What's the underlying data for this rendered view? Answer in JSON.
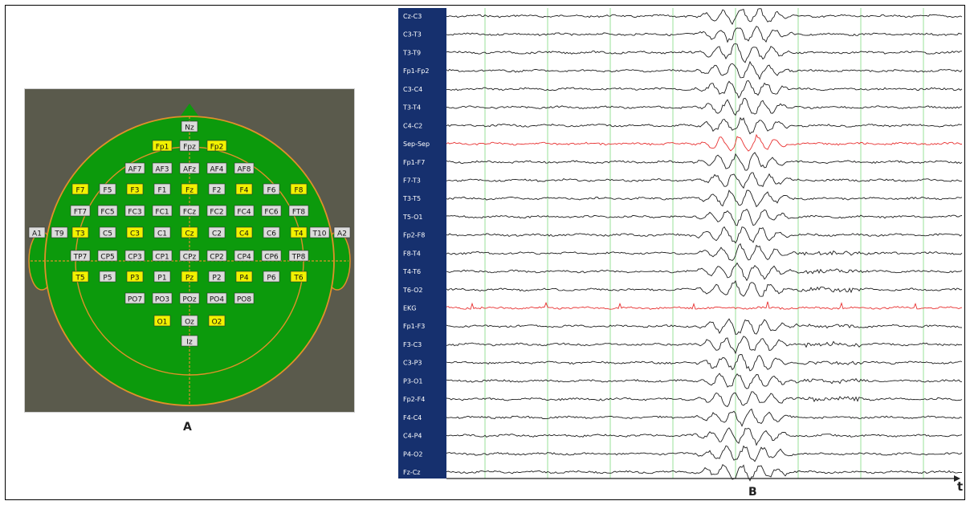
{
  "montage": {
    "caption": "A",
    "colors": {
      "background": "#5a5a4c",
      "head": "#0c9a0c",
      "outline": "#e0902a",
      "active_label": "#f2f200",
      "label": "#dcdcdc"
    },
    "electrodes": [
      {
        "label": "Nz",
        "active": false,
        "row": 0,
        "col": 0
      },
      {
        "label": "Fpz",
        "active": false,
        "row": 1,
        "col": 0
      },
      {
        "label": "Fp1",
        "active": true,
        "row": 1,
        "col": -1
      },
      {
        "label": "Fp2",
        "active": true,
        "row": 1,
        "col": 1
      },
      {
        "label": "AF7",
        "active": false,
        "row": 2,
        "col": -2
      },
      {
        "label": "AF3",
        "active": false,
        "row": 2,
        "col": -1
      },
      {
        "label": "AFz",
        "active": false,
        "row": 2,
        "col": 0
      },
      {
        "label": "AF4",
        "active": false,
        "row": 2,
        "col": 1
      },
      {
        "label": "AF8",
        "active": false,
        "row": 2,
        "col": 2
      },
      {
        "label": "F7",
        "active": true,
        "row": 3,
        "col": -4
      },
      {
        "label": "F5",
        "active": false,
        "row": 3,
        "col": -3
      },
      {
        "label": "F3",
        "active": true,
        "row": 3,
        "col": -2
      },
      {
        "label": "F1",
        "active": false,
        "row": 3,
        "col": -1
      },
      {
        "label": "Fz",
        "active": true,
        "row": 3,
        "col": 0
      },
      {
        "label": "F2",
        "active": false,
        "row": 3,
        "col": 1
      },
      {
        "label": "F4",
        "active": true,
        "row": 3,
        "col": 2
      },
      {
        "label": "F6",
        "active": false,
        "row": 3,
        "col": 3
      },
      {
        "label": "F8",
        "active": true,
        "row": 3,
        "col": 4
      },
      {
        "label": "FT7",
        "active": false,
        "row": 4,
        "col": -4
      },
      {
        "label": "FC5",
        "active": false,
        "row": 4,
        "col": -3
      },
      {
        "label": "FC3",
        "active": false,
        "row": 4,
        "col": -2
      },
      {
        "label": "FC1",
        "active": false,
        "row": 4,
        "col": -1
      },
      {
        "label": "FCz",
        "active": false,
        "row": 4,
        "col": 0
      },
      {
        "label": "FC2",
        "active": false,
        "row": 4,
        "col": 1
      },
      {
        "label": "FC4",
        "active": false,
        "row": 4,
        "col": 2
      },
      {
        "label": "FC6",
        "active": false,
        "row": 4,
        "col": 3
      },
      {
        "label": "FT8",
        "active": false,
        "row": 4,
        "col": 4
      },
      {
        "label": "A1",
        "active": false,
        "row": 5,
        "col": -6
      },
      {
        "label": "T9",
        "active": false,
        "row": 5,
        "col": -5
      },
      {
        "label": "T3",
        "active": true,
        "row": 5,
        "col": -4
      },
      {
        "label": "C5",
        "active": false,
        "row": 5,
        "col": -3
      },
      {
        "label": "C3",
        "active": true,
        "row": 5,
        "col": -2
      },
      {
        "label": "C1",
        "active": false,
        "row": 5,
        "col": -1
      },
      {
        "label": "Cz",
        "active": true,
        "row": 5,
        "col": 0
      },
      {
        "label": "C2",
        "active": false,
        "row": 5,
        "col": 1
      },
      {
        "label": "C4",
        "active": true,
        "row": 5,
        "col": 2
      },
      {
        "label": "C6",
        "active": false,
        "row": 5,
        "col": 3
      },
      {
        "label": "T4",
        "active": true,
        "row": 5,
        "col": 4
      },
      {
        "label": "T10",
        "active": false,
        "row": 5,
        "col": 5
      },
      {
        "label": "A2",
        "active": false,
        "row": 5,
        "col": 6
      },
      {
        "label": "TP7",
        "active": false,
        "row": 6,
        "col": -4
      },
      {
        "label": "CP5",
        "active": false,
        "row": 6,
        "col": -3
      },
      {
        "label": "CP3",
        "active": false,
        "row": 6,
        "col": -2
      },
      {
        "label": "CP1",
        "active": false,
        "row": 6,
        "col": -1
      },
      {
        "label": "CPz",
        "active": false,
        "row": 6,
        "col": 0
      },
      {
        "label": "CP2",
        "active": false,
        "row": 6,
        "col": 1
      },
      {
        "label": "CP4",
        "active": false,
        "row": 6,
        "col": 2
      },
      {
        "label": "CP6",
        "active": false,
        "row": 6,
        "col": 3
      },
      {
        "label": "TP8",
        "active": false,
        "row": 6,
        "col": 4
      },
      {
        "label": "T5",
        "active": true,
        "row": 7,
        "col": -4
      },
      {
        "label": "P5",
        "active": false,
        "row": 7,
        "col": -3
      },
      {
        "label": "P3",
        "active": true,
        "row": 7,
        "col": -2
      },
      {
        "label": "P1",
        "active": false,
        "row": 7,
        "col": -1
      },
      {
        "label": "Pz",
        "active": true,
        "row": 7,
        "col": 0
      },
      {
        "label": "P2",
        "active": false,
        "row": 7,
        "col": 1
      },
      {
        "label": "P4",
        "active": true,
        "row": 7,
        "col": 2
      },
      {
        "label": "P6",
        "active": false,
        "row": 7,
        "col": 3
      },
      {
        "label": "T6",
        "active": true,
        "row": 7,
        "col": 4
      },
      {
        "label": "PO7",
        "active": false,
        "row": 8,
        "col": -2
      },
      {
        "label": "PO3",
        "active": false,
        "row": 8,
        "col": -1
      },
      {
        "label": "POz",
        "active": false,
        "row": 8,
        "col": 0
      },
      {
        "label": "PO4",
        "active": false,
        "row": 8,
        "col": 1
      },
      {
        "label": "PO8",
        "active": false,
        "row": 8,
        "col": 2
      },
      {
        "label": "O1",
        "active": true,
        "row": 9,
        "col": -1
      },
      {
        "label": "Oz",
        "active": false,
        "row": 9,
        "col": 0
      },
      {
        "label": "O2",
        "active": true,
        "row": 9,
        "col": 1
      },
      {
        "label": "Iz",
        "active": false,
        "row": 10,
        "col": 0
      }
    ]
  },
  "eeg": {
    "caption": "B",
    "time_axis_label": "t",
    "colors": {
      "label_panel": "#16306e",
      "label_text": "#ffffff",
      "trace": "#1e1e1e",
      "highlight_trace": "#e83030",
      "grid": "#9ae29a"
    },
    "channels": [
      {
        "label": "Cz-C3",
        "highlight": false
      },
      {
        "label": "C3-T3",
        "highlight": false
      },
      {
        "label": "T3-T9",
        "highlight": false
      },
      {
        "label": "Fp1-Fp2",
        "highlight": false
      },
      {
        "label": "C3-C4",
        "highlight": false
      },
      {
        "label": "T3-T4",
        "highlight": false
      },
      {
        "label": "C4-C2",
        "highlight": false
      },
      {
        "label": "Sep-Sep",
        "highlight": true
      },
      {
        "label": "Fp1-F7",
        "highlight": false
      },
      {
        "label": "F7-T3",
        "highlight": false
      },
      {
        "label": "T3-T5",
        "highlight": false
      },
      {
        "label": "T5-O1",
        "highlight": false
      },
      {
        "label": "Fp2-F8",
        "highlight": false
      },
      {
        "label": "F8-T4",
        "highlight": false
      },
      {
        "label": "T4-T6",
        "highlight": false
      },
      {
        "label": "T6-O2",
        "highlight": false
      },
      {
        "label": "EKG",
        "highlight": true
      },
      {
        "label": "Fp1-F3",
        "highlight": false
      },
      {
        "label": "F3-C3",
        "highlight": false
      },
      {
        "label": "C3-P3",
        "highlight": false
      },
      {
        "label": "P3-O1",
        "highlight": false
      },
      {
        "label": "Fp2-F4",
        "highlight": false
      },
      {
        "label": "F4-C4",
        "highlight": false
      },
      {
        "label": "C4-P4",
        "highlight": false
      },
      {
        "label": "P4-O2",
        "highlight": false
      },
      {
        "label": "Fz-Cz",
        "highlight": false
      }
    ]
  }
}
